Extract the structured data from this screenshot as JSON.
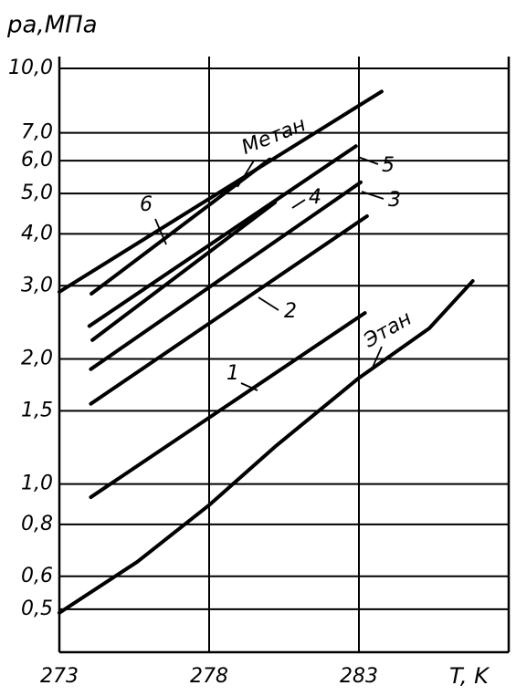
{
  "chart_data": {
    "type": "line",
    "y_label": "pа,МПа",
    "x_label": "T, K",
    "yscale": "log",
    "grid": true,
    "color": "#000000",
    "xlim": [
      273,
      288
    ],
    "ylim": [
      0.4,
      10
    ],
    "xticks": [
      273,
      278,
      283
    ],
    "yticks": [
      {
        "value": 10,
        "label": "10,0"
      },
      {
        "value": 7,
        "label": "7,0"
      },
      {
        "value": 6,
        "label": "6,0"
      },
      {
        "value": 5,
        "label": "5,0"
      },
      {
        "value": 4,
        "label": "4,0"
      },
      {
        "value": 3,
        "label": "3,0"
      },
      {
        "value": 2,
        "label": "2,0"
      },
      {
        "value": 1.5,
        "label": "1,5"
      },
      {
        "value": 1,
        "label": "1,0"
      },
      {
        "value": 0.8,
        "label": "0,8"
      },
      {
        "value": 0.6,
        "label": "0,6"
      },
      {
        "value": 0.5,
        "label": "0,5"
      }
    ],
    "series": [
      {
        "name": "Метан",
        "color": "#000000",
        "x": [
          273,
          283.76
        ],
        "values": [
          2.9,
          8.8
        ]
      },
      {
        "name": "6",
        "color": "#000000",
        "x": [
          274.07,
          280.02
        ],
        "values": [
          2.87,
          6.04
        ]
      },
      {
        "name": "5",
        "color": "#000000",
        "x": [
          274.0,
          282.9
        ],
        "values": [
          2.4,
          6.5
        ]
      },
      {
        "name": "4",
        "color": "#000000",
        "x": [
          274.1,
          280.2
        ],
        "values": [
          2.22,
          4.76
        ]
      },
      {
        "name": "3",
        "color": "#000000",
        "x": [
          274.05,
          283.06
        ],
        "values": [
          1.89,
          5.32
        ]
      },
      {
        "name": "2",
        "color": "#000000",
        "x": [
          274.05,
          283.27
        ],
        "values": [
          1.56,
          4.41
        ]
      },
      {
        "name": "1",
        "color": "#000000",
        "x": [
          274.05,
          283.2
        ],
        "values": [
          0.93,
          2.58
        ]
      },
      {
        "name": "Этан",
        "color": "#000000",
        "x": [
          273,
          275.6,
          278,
          280.2,
          283,
          285.35,
          286.8
        ],
        "values": [
          0.49,
          0.65,
          0.89,
          1.23,
          1.8,
          2.37,
          3.08
        ]
      }
    ]
  }
}
